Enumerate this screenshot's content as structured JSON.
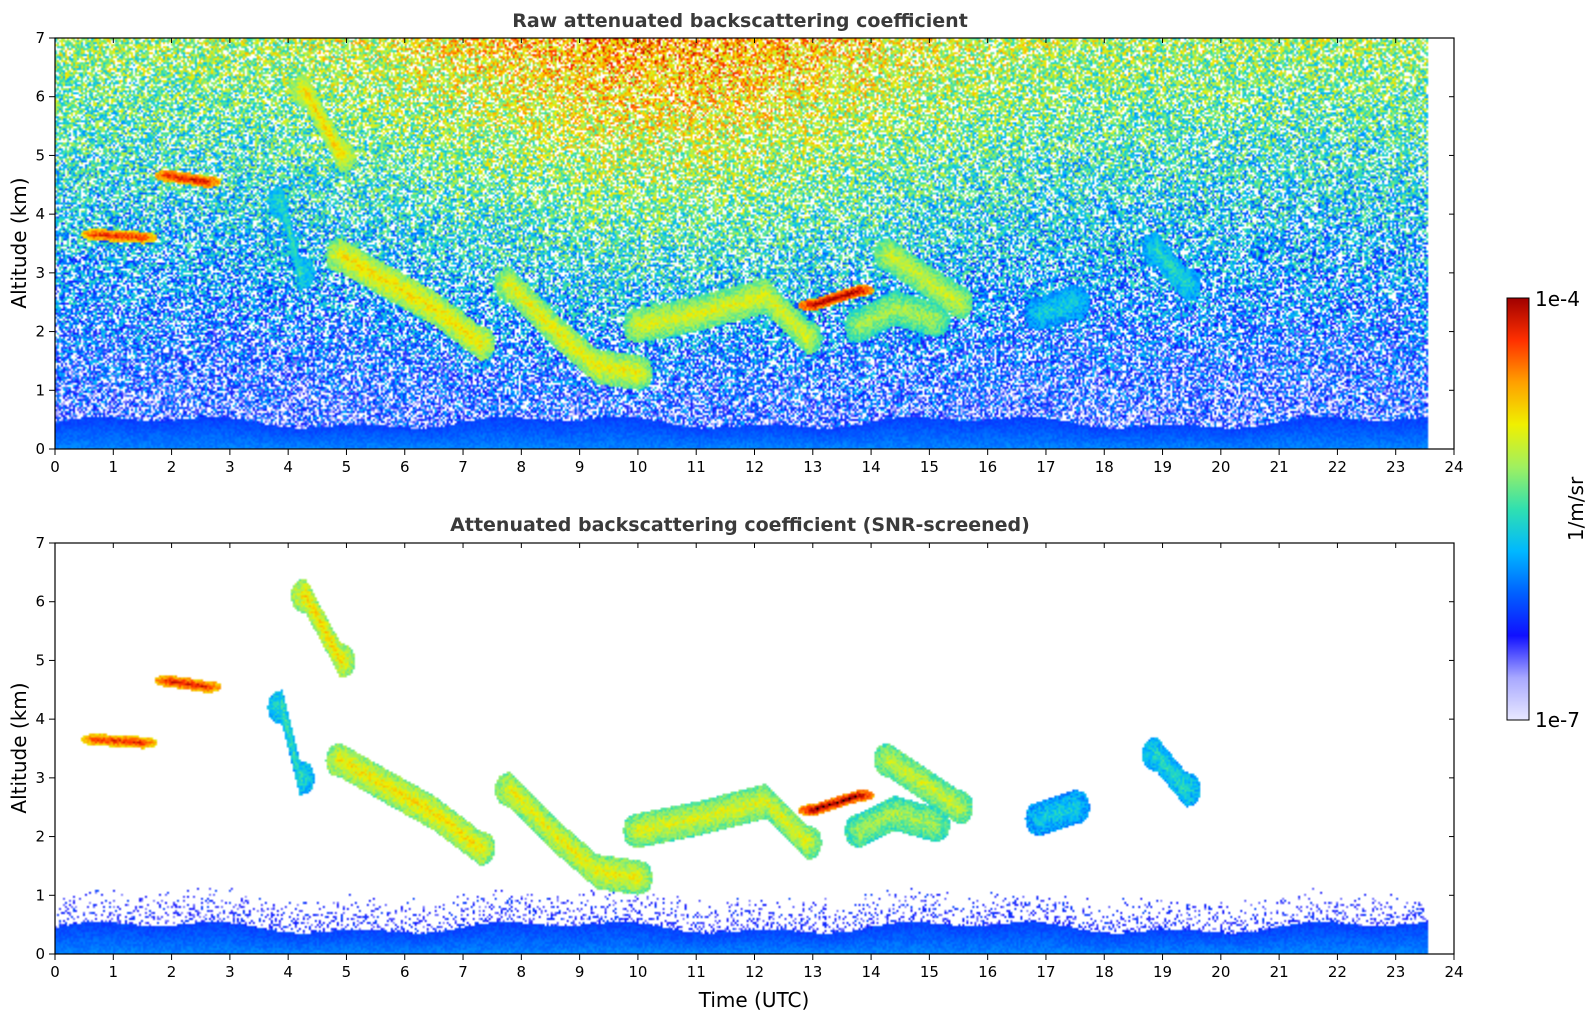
{
  "chart_data": [
    {
      "type": "heatmap",
      "title": "Raw attenuated backscattering coefficient",
      "xlabel": "",
      "ylabel": "Altitude (km)",
      "xlim": [
        0,
        24
      ],
      "ylim": [
        0,
        7
      ],
      "x_ticks": [
        "0",
        "1",
        "2",
        "3",
        "4",
        "5",
        "6",
        "7",
        "8",
        "9",
        "10",
        "11",
        "12",
        "13",
        "14",
        "15",
        "16",
        "17",
        "18",
        "19",
        "20",
        "21",
        "22",
        "23",
        "24"
      ],
      "y_ticks": [
        "0",
        "1",
        "2",
        "3",
        "4",
        "5",
        "6",
        "7"
      ],
      "data_end_time": 23.55,
      "features": [
        {
          "type": "boundary_layer",
          "t0": 0,
          "t1": 23.55,
          "top_km": 0.45,
          "level": 0.28
        },
        {
          "type": "cloud",
          "t": [
            4.9,
            5.6,
            6.5,
            7.3
          ],
          "alt": [
            3.3,
            2.9,
            2.4,
            1.8
          ],
          "level": 0.72
        },
        {
          "type": "cloud",
          "t": [
            7.8,
            8.6,
            9.3,
            10.0
          ],
          "alt": [
            2.8,
            2.0,
            1.4,
            1.3
          ],
          "level": 0.7
        },
        {
          "type": "cloud",
          "t": [
            10.0,
            11.0,
            12.2,
            12.9
          ],
          "alt": [
            2.1,
            2.3,
            2.6,
            1.9
          ],
          "level": 0.68
        },
        {
          "type": "cloud",
          "t": [
            13.8,
            14.4,
            15.1
          ],
          "alt": [
            2.1,
            2.4,
            2.2
          ],
          "level": 0.62
        },
        {
          "type": "cloud",
          "t": [
            14.3,
            14.9,
            15.5
          ],
          "alt": [
            3.3,
            2.9,
            2.5
          ],
          "level": 0.66
        },
        {
          "type": "cloud",
          "t": [
            13.0,
            13.8
          ],
          "alt": [
            2.45,
            2.7
          ],
          "level": 1.0
        },
        {
          "type": "cloud",
          "t": [
            1.95,
            2.6
          ],
          "alt": [
            4.65,
            4.55
          ],
          "level": 0.95
        },
        {
          "type": "cloud",
          "t": [
            0.7,
            1.5
          ],
          "alt": [
            3.65,
            3.6
          ],
          "level": 0.92
        },
        {
          "type": "cloud",
          "t": [
            4.3,
            4.9
          ],
          "alt": [
            6.1,
            5.0
          ],
          "level": 0.74
        },
        {
          "type": "cloud",
          "t": [
            3.9,
            4.2
          ],
          "alt": [
            4.2,
            3.0
          ],
          "level": 0.5
        },
        {
          "type": "cloud",
          "t": [
            16.9,
            17.5
          ],
          "alt": [
            2.3,
            2.5
          ],
          "level": 0.45
        },
        {
          "type": "cloud",
          "t": [
            18.9,
            19.4
          ],
          "alt": [
            3.4,
            2.8
          ],
          "level": 0.48
        }
      ]
    },
    {
      "type": "heatmap",
      "title": "Attenuated backscattering coefficient (SNR-screened)",
      "xlabel": "Time (UTC)",
      "ylabel": "Altitude (km)",
      "xlim": [
        0,
        24
      ],
      "ylim": [
        0,
        7
      ],
      "x_ticks": [
        "0",
        "1",
        "2",
        "3",
        "4",
        "5",
        "6",
        "7",
        "8",
        "9",
        "10",
        "11",
        "12",
        "13",
        "14",
        "15",
        "16",
        "17",
        "18",
        "19",
        "20",
        "21",
        "22",
        "23",
        "24"
      ],
      "y_ticks": [
        "0",
        "1",
        "2",
        "3",
        "4",
        "5",
        "6",
        "7"
      ],
      "data_end_time": 23.55,
      "screened": true
    }
  ],
  "colorbar": {
    "label": "1/m/sr",
    "max_label": "1e-4",
    "min_label": "1e-7",
    "scale": "log",
    "colors": [
      "#e8e8ff",
      "#a8a8ff",
      "#1010ff",
      "#0060ff",
      "#00b8ff",
      "#30e0b0",
      "#a0f060",
      "#f0f000",
      "#ffa000",
      "#ff3000",
      "#a00000"
    ]
  }
}
